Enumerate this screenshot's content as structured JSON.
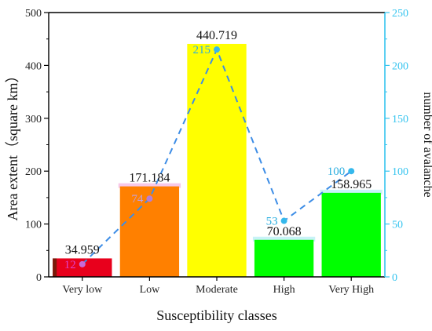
{
  "chart_data": {
    "type": "bar",
    "categories": [
      "Very low",
      "Low",
      "Moderate",
      "High",
      "Very High"
    ],
    "xlabel": "Susceptibility classes",
    "ylabel": "Area extent（square km）",
    "y2label": "number of avalanche",
    "ylim": [
      0,
      500
    ],
    "y2lim": [
      0,
      250
    ],
    "yticks": [
      "0",
      "100",
      "200",
      "300",
      "400",
      "500"
    ],
    "y2ticks": [
      "0",
      "50",
      "100",
      "150",
      "200",
      "250"
    ],
    "series": [
      {
        "axis": "left",
        "kind": "bar",
        "values": [
          34.959,
          171.184,
          440.719,
          70.068,
          158.965
        ],
        "labels": [
          "34.959",
          "171.184",
          "440.719",
          "70.068",
          "158.965"
        ],
        "colors": [
          "#e8001c",
          "#ff8000",
          "#ffff00",
          "#00ff00",
          "#00ff00"
        ]
      },
      {
        "axis": "right",
        "kind": "line",
        "style": "dashed",
        "values": [
          12,
          74,
          215,
          53,
          100
        ],
        "labels": [
          "12",
          "74",
          "215",
          "53",
          "100"
        ],
        "point_colors": [
          "#c86ad6",
          "#b47ed8",
          "#35b8ec",
          "#35b8ec",
          "#35b8ec"
        ],
        "label_colors": [
          "#e040c8",
          "#c0a0e0",
          "#2aaee0",
          "#2aaee0",
          "#2aaee0"
        ]
      }
    ],
    "grid": false,
    "colors": {
      "line": "#3d8de6",
      "right_axis": "#35c4ef"
    }
  }
}
